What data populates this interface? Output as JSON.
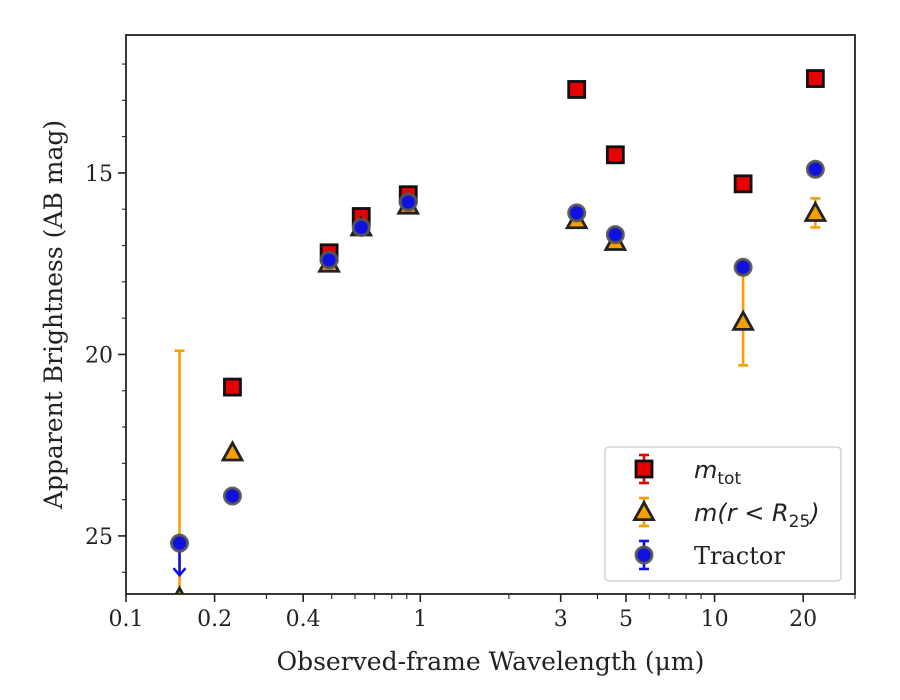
{
  "chart_data": {
    "type": "scatter",
    "title": "",
    "xlabel": "Observed-frame Wavelength (μm)",
    "ylabel": "Apparent Brightness (AB mag)",
    "xscale": "log",
    "xlim": [
      0.1,
      30
    ],
    "ylim": [
      26.6,
      11.2
    ],
    "y_inverted": true,
    "x_ticks": [
      0.1,
      0.2,
      0.4,
      1,
      3,
      5,
      10,
      20
    ],
    "x_tick_labels": [
      "0.1",
      "0.2",
      "0.4",
      "1",
      "3",
      "5",
      "10",
      "20"
    ],
    "y_ticks": [
      15,
      20,
      25
    ],
    "y_tick_labels": [
      "15",
      "20",
      "25"
    ],
    "legend_position": "lower right",
    "series": [
      {
        "name": "m_tot",
        "legend_main": "m",
        "legend_sub": "tot",
        "marker": "square",
        "color": "#e60000",
        "points": [
          {
            "x": 0.23,
            "y": 20.9
          },
          {
            "x": 0.49,
            "y": 17.2
          },
          {
            "x": 0.63,
            "y": 16.2
          },
          {
            "x": 0.91,
            "y": 15.6
          },
          {
            "x": 3.4,
            "y": 12.7
          },
          {
            "x": 4.6,
            "y": 14.5
          },
          {
            "x": 12.5,
            "y": 15.3
          },
          {
            "x": 22.0,
            "y": 12.4
          }
        ]
      },
      {
        "name": "m(r < R25)",
        "legend_main": "m(r < R",
        "legend_sub": "25",
        "legend_tail": ")",
        "marker": "triangle",
        "color": "#f5a000",
        "points": [
          {
            "x": 0.152,
            "y": 26.7,
            "err_low": 26.7,
            "err_high": 19.9
          },
          {
            "x": 0.23,
            "y": 22.7
          },
          {
            "x": 0.49,
            "y": 17.5
          },
          {
            "x": 0.63,
            "y": 16.5
          },
          {
            "x": 0.91,
            "y": 15.9
          },
          {
            "x": 3.4,
            "y": 16.3
          },
          {
            "x": 4.6,
            "y": 16.9
          },
          {
            "x": 12.5,
            "y": 19.1,
            "err_low": 20.3,
            "err_high": 17.8
          },
          {
            "x": 22.0,
            "y": 16.1,
            "err_low": 16.5,
            "err_high": 15.7
          }
        ]
      },
      {
        "name": "Tractor",
        "marker": "circle",
        "color": "#1010e0",
        "points": [
          {
            "x": 0.152,
            "y": 25.2,
            "upper_limit": true
          },
          {
            "x": 0.23,
            "y": 23.9
          },
          {
            "x": 0.49,
            "y": 17.4
          },
          {
            "x": 0.63,
            "y": 16.5
          },
          {
            "x": 0.91,
            "y": 15.8
          },
          {
            "x": 3.4,
            "y": 16.1
          },
          {
            "x": 4.6,
            "y": 16.7
          },
          {
            "x": 12.5,
            "y": 17.6
          },
          {
            "x": 22.0,
            "y": 14.9
          }
        ]
      }
    ]
  }
}
